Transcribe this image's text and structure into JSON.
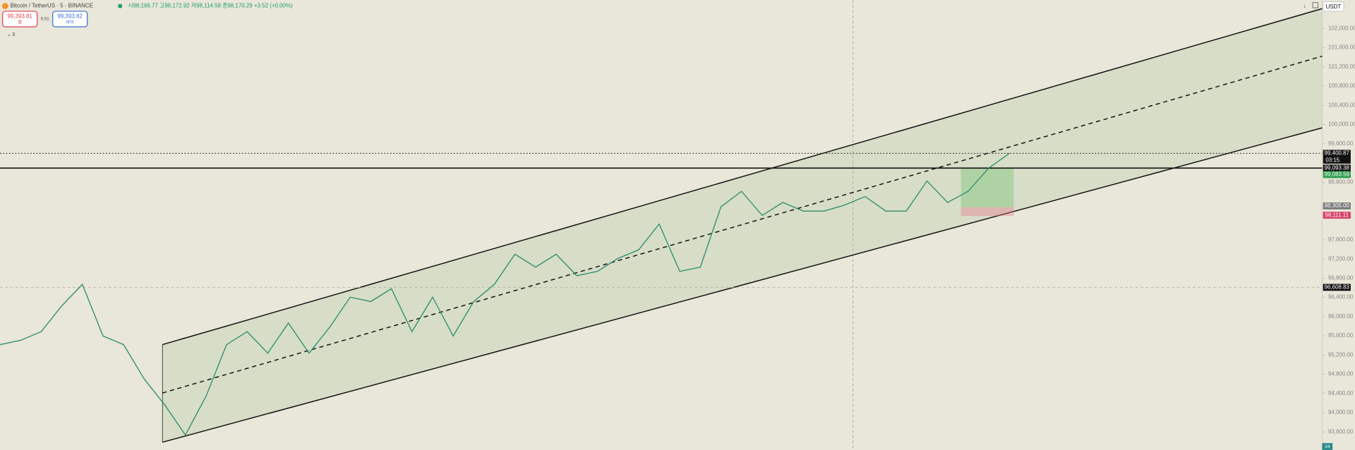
{
  "header": {
    "symbol": "Bitcoin / TetherUS · 5 · BINANCE",
    "ohlc": "시98,166.77 고98,172.92 저98,114.58 종98,170.29 +3.52 (+0.00%)",
    "sell_price": "99,393.81",
    "sell_label": "팔",
    "spread": "0.01",
    "buy_price": "99,393.82",
    "buy_label": "바이",
    "indicators": "3",
    "currency": "USDT"
  },
  "price_axis": {
    "ticks": [
      {
        "value": 102000,
        "label": "102,000.00"
      },
      {
        "value": 101600,
        "label": "101,600.00"
      },
      {
        "value": 101200,
        "label": "101,200.00"
      },
      {
        "value": 100800,
        "label": "100,800.00"
      },
      {
        "value": 100400,
        "label": "100,400.00"
      },
      {
        "value": 100000,
        "label": "100,000.00"
      },
      {
        "value": 99600,
        "label": "99,600.00"
      },
      {
        "value": 98800,
        "label": "98,800.00"
      },
      {
        "value": 97600,
        "label": "97,600.00"
      },
      {
        "value": 97200,
        "label": "97,200.00"
      },
      {
        "value": 96800,
        "label": "96,800.00"
      },
      {
        "value": 96400,
        "label": "96,400.00"
      },
      {
        "value": 96000,
        "label": "96,000.00"
      },
      {
        "value": 95600,
        "label": "95,600.00"
      },
      {
        "value": 95200,
        "label": "95,200.00"
      },
      {
        "value": 94800,
        "label": "94,800.00"
      },
      {
        "value": 94400,
        "label": "94,400.00"
      },
      {
        "value": 94000,
        "label": "94,000.00"
      },
      {
        "value": 93600,
        "label": "93,600.00"
      }
    ],
    "tags": [
      {
        "value": 99400.87,
        "label": "99,400.87",
        "countdown": "03:15"
      },
      {
        "value": 99093.38,
        "label": "99,093.38"
      },
      {
        "value": 99083.59,
        "label": "99,083.59"
      },
      {
        "value": 98305,
        "label": "98,305.00"
      },
      {
        "value": 98111.11,
        "label": "98,111.11"
      },
      {
        "value": 96608.83,
        "label": "96,608.83"
      }
    ]
  },
  "price_path": [
    95417,
    95507,
    95686,
    96224,
    96673,
    95596,
    95417,
    94700,
    94162,
    93534,
    94341,
    95417,
    95686,
    95238,
    95866,
    95238,
    95776,
    96404,
    96314,
    96583,
    95686,
    96404,
    95596,
    96314,
    96673,
    97300,
    97031,
    97300,
    96852,
    96942,
    97211,
    97390,
    97928,
    96942,
    97031,
    98287,
    98610,
    98108,
    98377,
    98197,
    98197,
    98323,
    98502,
    98197,
    98197,
    98825,
    98377,
    98610,
    99094,
    99399
  ],
  "footer": {
    "volume_badge": "24"
  }
}
